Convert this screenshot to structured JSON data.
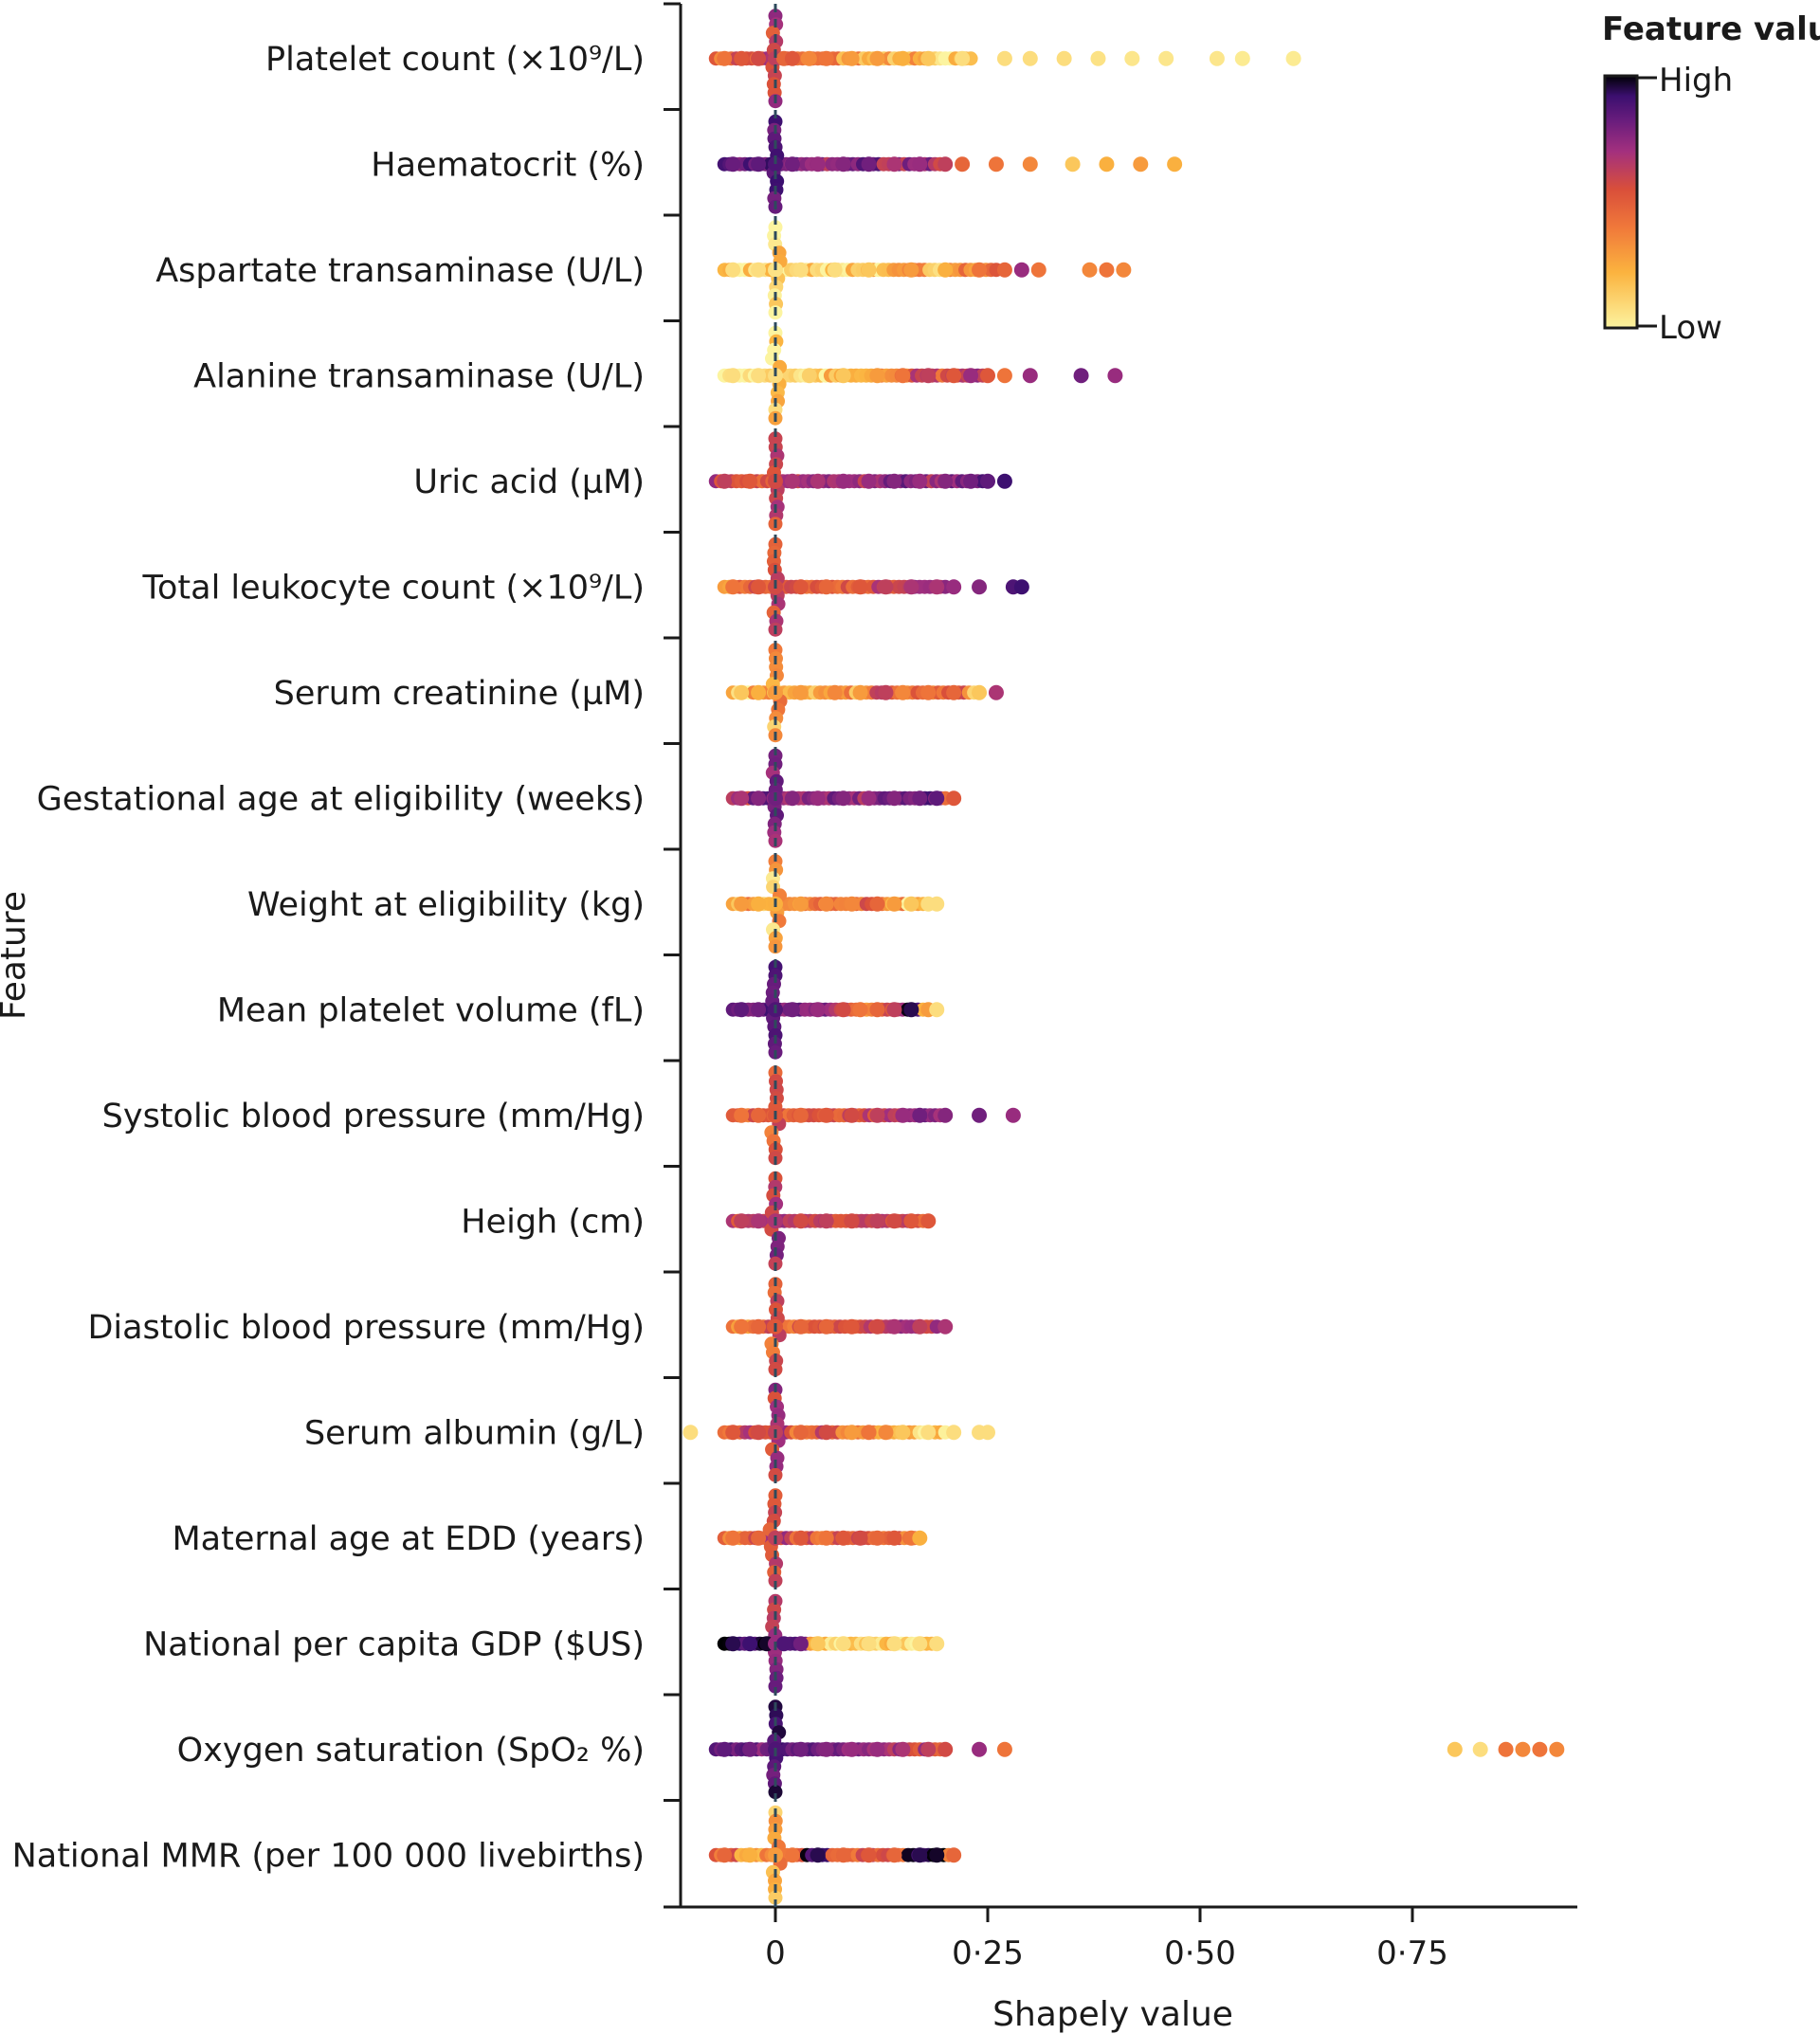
{
  "chart_data": {
    "type": "beeswarm",
    "title": "",
    "xlabel": "Shapely value",
    "ylabel": "Feature",
    "xlim": [
      -0.13,
      0.93
    ],
    "xticks": [
      {
        "value": 0,
        "label": "0"
      },
      {
        "value": 0.25,
        "label": "0·25"
      },
      {
        "value": 0.5,
        "label": "0·50"
      },
      {
        "value": 0.75,
        "label": "0·75"
      }
    ],
    "reference_line": 0,
    "colorbar": {
      "title": "Feature value",
      "high_label": "High",
      "low_label": "Low",
      "colors": [
        "#fcf4a0",
        "#fbb33f",
        "#f0783a",
        "#d94f3a",
        "#a3307e",
        "#6a1d7d",
        "#3b0f6f",
        "#000004"
      ]
    },
    "features": [
      {
        "label": "Platelet count (×10⁹/L)",
        "points": [
          [
            -0.06,
            0.3
          ],
          [
            -0.04,
            0.4
          ],
          [
            -0.02,
            0.45
          ],
          [
            0,
            0.5
          ],
          [
            0.01,
            0.35
          ],
          [
            0.02,
            0.4
          ],
          [
            0.04,
            0.25
          ],
          [
            0.06,
            0.3
          ],
          [
            0.09,
            0.2
          ],
          [
            0.12,
            0.2
          ],
          [
            0.15,
            0.15
          ],
          [
            0.18,
            0.1
          ],
          [
            0.22,
            0.05
          ],
          [
            0.27,
            0.05
          ],
          [
            0.3,
            0.05
          ],
          [
            0.34,
            0.05
          ],
          [
            0.38,
            0.04
          ],
          [
            0.42,
            0.03
          ],
          [
            0.46,
            0.03
          ],
          [
            0.52,
            0.03
          ],
          [
            0.55,
            0.02
          ],
          [
            0.61,
            0.02
          ]
        ],
        "spread": [
          -0.07,
          0.23
        ]
      },
      {
        "label": "Haematocrit (%)",
        "points": [
          [
            -0.05,
            0.72
          ],
          [
            -0.02,
            0.75
          ],
          [
            0,
            0.8
          ],
          [
            0.02,
            0.7
          ],
          [
            0.05,
            0.6
          ],
          [
            0.08,
            0.65
          ],
          [
            0.11,
            0.7
          ],
          [
            0.14,
            0.55
          ],
          [
            0.17,
            0.6
          ],
          [
            0.2,
            0.5
          ],
          [
            0.22,
            0.35
          ],
          [
            0.26,
            0.3
          ],
          [
            0.3,
            0.25
          ],
          [
            0.35,
            0.1
          ],
          [
            0.39,
            0.15
          ],
          [
            0.43,
            0.2
          ],
          [
            0.47,
            0.15
          ]
        ],
        "spread": [
          -0.06,
          0.2
        ]
      },
      {
        "label": "Aspartate transaminase (U/L)",
        "points": [
          [
            -0.05,
            0.05
          ],
          [
            -0.02,
            0.05
          ],
          [
            0,
            0.04
          ],
          [
            0.03,
            0.05
          ],
          [
            0.07,
            0.05
          ],
          [
            0.11,
            0.1
          ],
          [
            0.16,
            0.2
          ],
          [
            0.2,
            0.15
          ],
          [
            0.24,
            0.3
          ],
          [
            0.27,
            0.35
          ],
          [
            0.29,
            0.6
          ],
          [
            0.31,
            0.3
          ],
          [
            0.37,
            0.25
          ],
          [
            0.39,
            0.3
          ],
          [
            0.41,
            0.25
          ]
        ],
        "spread": [
          -0.06,
          0.26
        ]
      },
      {
        "label": "Alanine transaminase (U/L)",
        "points": [
          [
            -0.05,
            0.05
          ],
          [
            -0.02,
            0.05
          ],
          [
            0,
            0.05
          ],
          [
            0.04,
            0.08
          ],
          [
            0.08,
            0.1
          ],
          [
            0.12,
            0.2
          ],
          [
            0.15,
            0.3
          ],
          [
            0.18,
            0.5
          ],
          [
            0.21,
            0.4
          ],
          [
            0.23,
            0.6
          ],
          [
            0.25,
            0.4
          ],
          [
            0.27,
            0.3
          ],
          [
            0.3,
            0.6
          ],
          [
            0.36,
            0.7
          ],
          [
            0.4,
            0.6
          ]
        ],
        "spread": [
          -0.06,
          0.25
        ]
      },
      {
        "label": "Uric acid (µM)",
        "points": [
          [
            -0.06,
            0.5
          ],
          [
            -0.03,
            0.4
          ],
          [
            0,
            0.45
          ],
          [
            0.02,
            0.55
          ],
          [
            0.05,
            0.55
          ],
          [
            0.08,
            0.6
          ],
          [
            0.11,
            0.6
          ],
          [
            0.14,
            0.65
          ],
          [
            0.17,
            0.6
          ],
          [
            0.2,
            0.65
          ],
          [
            0.23,
            0.7
          ],
          [
            0.25,
            0.75
          ],
          [
            0.27,
            0.85
          ]
        ],
        "spread": [
          -0.07,
          0.25
        ]
      },
      {
        "label": "Total leukocyte count (×10⁹/L)",
        "points": [
          [
            -0.05,
            0.3
          ],
          [
            -0.02,
            0.4
          ],
          [
            0,
            0.45
          ],
          [
            0.03,
            0.4
          ],
          [
            0.06,
            0.35
          ],
          [
            0.1,
            0.4
          ],
          [
            0.13,
            0.5
          ],
          [
            0.16,
            0.55
          ],
          [
            0.19,
            0.55
          ],
          [
            0.21,
            0.6
          ],
          [
            0.24,
            0.65
          ],
          [
            0.28,
            0.8
          ],
          [
            0.29,
            0.85
          ]
        ],
        "spread": [
          -0.06,
          0.2
        ]
      },
      {
        "label": "Serum creatinine (µM)",
        "points": [
          [
            -0.04,
            0.1
          ],
          [
            -0.02,
            0.15
          ],
          [
            0,
            0.2
          ],
          [
            0.03,
            0.2
          ],
          [
            0.07,
            0.25
          ],
          [
            0.1,
            0.2
          ],
          [
            0.13,
            0.5
          ],
          [
            0.15,
            0.25
          ],
          [
            0.18,
            0.3
          ],
          [
            0.21,
            0.35
          ],
          [
            0.24,
            0.1
          ],
          [
            0.26,
            0.55
          ]
        ],
        "spread": [
          -0.05,
          0.24
        ]
      },
      {
        "label": "Gestational age at eligibility (weeks)",
        "points": [
          [
            -0.04,
            0.55
          ],
          [
            -0.02,
            0.65
          ],
          [
            0,
            0.7
          ],
          [
            0.02,
            0.65
          ],
          [
            0.05,
            0.6
          ],
          [
            0.08,
            0.65
          ],
          [
            0.11,
            0.6
          ],
          [
            0.14,
            0.65
          ],
          [
            0.17,
            0.7
          ],
          [
            0.19,
            0.75
          ],
          [
            0.21,
            0.4
          ]
        ],
        "spread": [
          -0.05,
          0.2
        ]
      },
      {
        "label": "Weight at eligibility (kg)",
        "points": [
          [
            -0.04,
            0.2
          ],
          [
            -0.02,
            0.15
          ],
          [
            0,
            0.15
          ],
          [
            0.03,
            0.2
          ],
          [
            0.06,
            0.25
          ],
          [
            0.09,
            0.25
          ],
          [
            0.12,
            0.35
          ],
          [
            0.14,
            0.2
          ],
          [
            0.16,
            0.1
          ],
          [
            0.18,
            0.05
          ],
          [
            0.19,
            0.05
          ]
        ],
        "spread": [
          -0.05,
          0.18
        ]
      },
      {
        "label": "Mean platelet volume (fL)",
        "points": [
          [
            -0.04,
            0.75
          ],
          [
            -0.02,
            0.7
          ],
          [
            0,
            0.8
          ],
          [
            0.02,
            0.7
          ],
          [
            0.05,
            0.6
          ],
          [
            0.08,
            0.45
          ],
          [
            0.1,
            0.3
          ],
          [
            0.12,
            0.35
          ],
          [
            0.14,
            0.5
          ],
          [
            0.16,
            0.9
          ],
          [
            0.18,
            0.2
          ],
          [
            0.19,
            0.05
          ]
        ],
        "spread": [
          -0.05,
          0.18
        ]
      },
      {
        "label": "Systolic blood pressure (mm/Hg)",
        "points": [
          [
            -0.04,
            0.3
          ],
          [
            -0.02,
            0.35
          ],
          [
            0,
            0.4
          ],
          [
            0.03,
            0.35
          ],
          [
            0.06,
            0.4
          ],
          [
            0.09,
            0.45
          ],
          [
            0.12,
            0.5
          ],
          [
            0.15,
            0.6
          ],
          [
            0.17,
            0.7
          ],
          [
            0.2,
            0.65
          ],
          [
            0.24,
            0.7
          ],
          [
            0.28,
            0.6
          ]
        ],
        "spread": [
          -0.05,
          0.2
        ]
      },
      {
        "label": "Heigh (cm)",
        "points": [
          [
            -0.04,
            0.5
          ],
          [
            -0.02,
            0.55
          ],
          [
            0,
            0.55
          ],
          [
            0.03,
            0.45
          ],
          [
            0.06,
            0.5
          ],
          [
            0.09,
            0.45
          ],
          [
            0.12,
            0.5
          ],
          [
            0.14,
            0.45
          ],
          [
            0.16,
            0.4
          ],
          [
            0.18,
            0.4
          ]
        ],
        "spread": [
          -0.05,
          0.18
        ]
      },
      {
        "label": "Diastolic blood pressure (mm/Hg)",
        "points": [
          [
            -0.04,
            0.3
          ],
          [
            -0.02,
            0.35
          ],
          [
            0,
            0.4
          ],
          [
            0.03,
            0.35
          ],
          [
            0.06,
            0.35
          ],
          [
            0.09,
            0.4
          ],
          [
            0.12,
            0.45
          ],
          [
            0.14,
            0.55
          ],
          [
            0.17,
            0.5
          ],
          [
            0.2,
            0.55
          ]
        ],
        "spread": [
          -0.05,
          0.19
        ]
      },
      {
        "label": "Serum albumin (g/L)",
        "points": [
          [
            -0.1,
            0.05
          ],
          [
            -0.05,
            0.4
          ],
          [
            -0.02,
            0.45
          ],
          [
            0,
            0.5
          ],
          [
            0.03,
            0.35
          ],
          [
            0.06,
            0.45
          ],
          [
            0.09,
            0.2
          ],
          [
            0.11,
            0.3
          ],
          [
            0.13,
            0.25
          ],
          [
            0.15,
            0.1
          ],
          [
            0.18,
            0.05
          ],
          [
            0.21,
            0.05
          ],
          [
            0.24,
            0.05
          ],
          [
            0.25,
            0.05
          ]
        ],
        "spread": [
          -0.06,
          0.2
        ]
      },
      {
        "label": "Maternal age at EDD (years)",
        "points": [
          [
            -0.05,
            0.3
          ],
          [
            -0.02,
            0.35
          ],
          [
            0,
            0.5
          ],
          [
            0.03,
            0.4
          ],
          [
            0.06,
            0.3
          ],
          [
            0.08,
            0.4
          ],
          [
            0.1,
            0.45
          ],
          [
            0.12,
            0.35
          ],
          [
            0.14,
            0.4
          ],
          [
            0.16,
            0.3
          ],
          [
            0.17,
            0.15
          ]
        ],
        "spread": [
          -0.06,
          0.17
        ]
      },
      {
        "label": "National per capita GDP ($US)",
        "points": [
          [
            -0.05,
            0.9
          ],
          [
            -0.03,
            0.85
          ],
          [
            -0.01,
            0.95
          ],
          [
            0,
            0.6
          ],
          [
            0.01,
            0.8
          ],
          [
            0.03,
            0.7
          ],
          [
            0.05,
            0.1
          ],
          [
            0.08,
            0.05
          ],
          [
            0.11,
            0.05
          ],
          [
            0.14,
            0.05
          ],
          [
            0.17,
            0.05
          ],
          [
            0.19,
            0.05
          ]
        ],
        "spread": [
          -0.06,
          0.19
        ]
      },
      {
        "label": "Oxygen saturation (SpO₂ %)",
        "points": [
          [
            -0.06,
            0.75
          ],
          [
            -0.03,
            0.7
          ],
          [
            0,
            0.8
          ],
          [
            0.03,
            0.7
          ],
          [
            0.06,
            0.65
          ],
          [
            0.09,
            0.6
          ],
          [
            0.12,
            0.6
          ],
          [
            0.15,
            0.55
          ],
          [
            0.18,
            0.5
          ],
          [
            0.2,
            0.45
          ],
          [
            0.24,
            0.6
          ],
          [
            0.27,
            0.3
          ],
          [
            0.8,
            0.1
          ],
          [
            0.83,
            0.05
          ],
          [
            0.86,
            0.3
          ],
          [
            0.88,
            0.25
          ],
          [
            0.9,
            0.3
          ],
          [
            0.92,
            0.25
          ]
        ],
        "spread": [
          -0.07,
          0.2
        ]
      },
      {
        "label": "National MMR (per 100 000 livebirths)",
        "points": [
          [
            -0.06,
            0.35
          ],
          [
            -0.03,
            0.15
          ],
          [
            0,
            0.2
          ],
          [
            0.02,
            0.3
          ],
          [
            0.05,
            0.9
          ],
          [
            0.08,
            0.35
          ],
          [
            0.11,
            0.4
          ],
          [
            0.14,
            0.35
          ],
          [
            0.17,
            0.9
          ],
          [
            0.19,
            0.95
          ],
          [
            0.21,
            0.35
          ]
        ],
        "spread": [
          -0.07,
          0.21
        ]
      }
    ]
  }
}
